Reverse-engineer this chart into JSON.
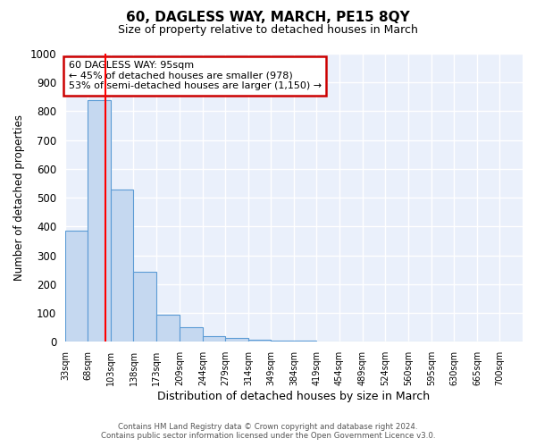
{
  "title": "60, DAGLESS WAY, MARCH, PE15 8QY",
  "subtitle": "Size of property relative to detached houses in March",
  "xlabel": "Distribution of detached houses by size in March",
  "ylabel": "Number of detached properties",
  "bar_color": "#c5d8f0",
  "bar_edge_color": "#5b9bd5",
  "red_line_x": 95,
  "bin_edges": [
    33,
    68,
    103,
    138,
    173,
    209,
    244,
    279,
    314,
    349,
    384,
    419,
    454,
    489,
    524,
    560,
    595,
    630,
    665,
    700,
    735
  ],
  "bar_heights": [
    385,
    840,
    530,
    243,
    95,
    52,
    20,
    15,
    8,
    5,
    5,
    0,
    0,
    0,
    0,
    0,
    0,
    0,
    0,
    0
  ],
  "annotation_text": "60 DAGLESS WAY: 95sqm\n← 45% of detached houses are smaller (978)\n53% of semi-detached houses are larger (1,150) →",
  "annotation_box_color": "#ffffff",
  "annotation_box_edge": "#cc0000",
  "footer_line1": "Contains HM Land Registry data © Crown copyright and database right 2024.",
  "footer_line2": "Contains public sector information licensed under the Open Government Licence v3.0.",
  "bg_color": "#eaf0fb",
  "grid_color": "#ffffff",
  "ylim": [
    0,
    1000
  ],
  "yticks": [
    0,
    100,
    200,
    300,
    400,
    500,
    600,
    700,
    800,
    900,
    1000
  ],
  "figsize": [
    6.0,
    5.0
  ],
  "dpi": 100
}
